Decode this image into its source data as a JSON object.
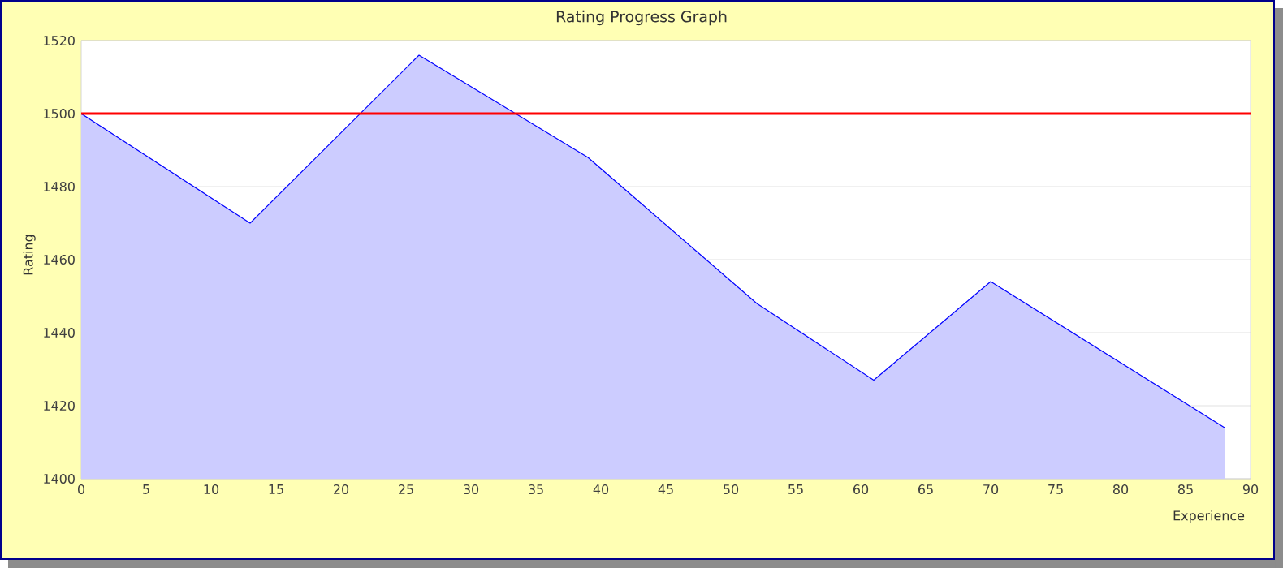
{
  "chart_data": {
    "type": "area",
    "title": "Rating Progress Graph",
    "xlabel": "Experience",
    "ylabel": "Rating",
    "x": [
      0,
      13,
      26,
      39,
      52,
      61,
      70,
      88
    ],
    "series": [
      {
        "color": "#0000ff",
        "values": [
          1500,
          1470,
          1516,
          1488,
          1448,
          1427,
          1454,
          1414
        ]
      }
    ],
    "xlim": [
      0,
      90
    ],
    "xticks": [
      0,
      5,
      10,
      15,
      20,
      25,
      30,
      35,
      40,
      45,
      50,
      55,
      60,
      65,
      70,
      75,
      80,
      85,
      90
    ],
    "ylim": [
      1400,
      1520
    ],
    "yticks": [
      1400,
      1420,
      1440,
      1460,
      1480,
      1500,
      1520
    ],
    "grid": "y",
    "ref_lines": [
      {
        "axis": "y",
        "value": 1500,
        "color": "#ff0000"
      }
    ]
  }
}
